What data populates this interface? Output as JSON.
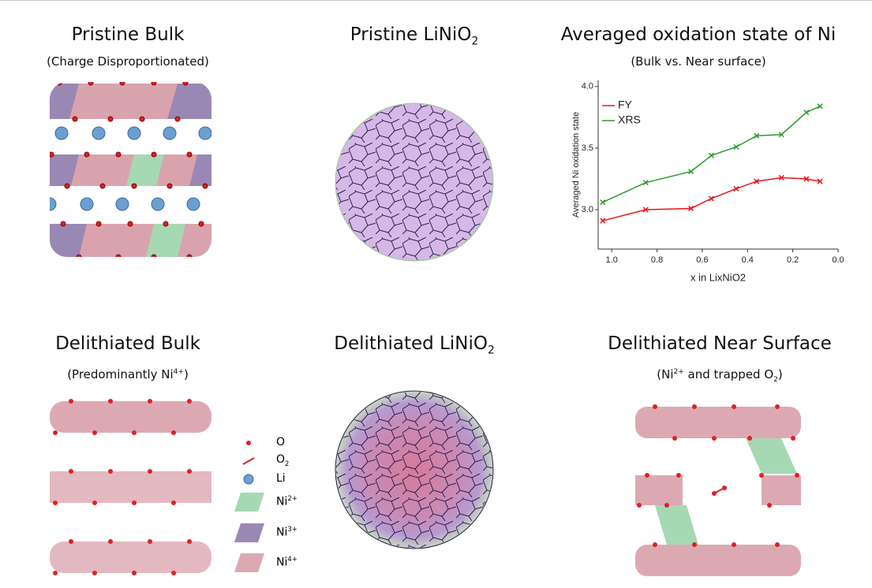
{
  "panels": {
    "pristine_bulk": {
      "title": "Pristine Bulk",
      "subtitle": "(Charge Disproportionated)"
    },
    "pristine_particle": {
      "title": "Pristine LiNiO",
      "title_sub": "2"
    },
    "oxidation": {
      "title": "Averaged oxidation state of Ni",
      "subtitle": "(Bulk vs. Near surface)"
    },
    "delithiated_bulk": {
      "title": "Delithiated Bulk",
      "subtitle_pre": "(Predominantly Ni",
      "subtitle_sup": "4+",
      "subtitle_post": ")"
    },
    "delithiated_particle": {
      "title": "Delithiated LiNiO",
      "title_sub": "2"
    },
    "near_surface": {
      "title": "Delithiated Near Surface",
      "subtitle_pre": "(Ni",
      "subtitle_sup": "2+",
      "subtitle_mid": " and trapped O",
      "subtitle_sub": "2",
      "subtitle_post": ")"
    }
  },
  "legend": {
    "o": "O",
    "o2": {
      "text": "O",
      "sub": "2"
    },
    "li": "Li",
    "ni2": {
      "text": "Ni",
      "sup": "2+"
    },
    "ni3": {
      "text": "Ni",
      "sup": "3+"
    },
    "ni4": {
      "text": "Ni",
      "sup": "4+"
    }
  },
  "chart_data": {
    "type": "line",
    "x_label": "x in LixNiO2",
    "y_label": "Averaged Ni oxidation state",
    "x": [
      1.04,
      0.85,
      0.65,
      0.56,
      0.45,
      0.36,
      0.25,
      0.14,
      0.08
    ],
    "series": [
      {
        "name": "FY",
        "color": "#e8141b",
        "values": [
          2.91,
          3.0,
          3.01,
          3.09,
          3.17,
          3.23,
          3.26,
          3.25,
          3.23
        ]
      },
      {
        "name": "XRS",
        "color": "#2a9d2a",
        "values": [
          3.06,
          3.22,
          3.31,
          3.44,
          3.51,
          3.6,
          3.61,
          3.79,
          3.84
        ]
      }
    ],
    "xlim": [
      1.06,
      0.0
    ],
    "ylim": [
      2.68,
      4.05
    ],
    "xticks": [
      {
        "value": 1.0,
        "label": "1.0"
      },
      {
        "value": 0.8,
        "label": "0.8"
      },
      {
        "value": 0.6,
        "label": "0.6"
      },
      {
        "value": 0.4,
        "label": "0.4"
      },
      {
        "value": 0.2,
        "label": "0.2"
      },
      {
        "value": 0.0,
        "label": "0.0"
      }
    ],
    "yticks": [
      {
        "value": 3.0,
        "label": "3.0"
      },
      {
        "value": 3.5,
        "label": "3.5"
      },
      {
        "value": 4.0,
        "label": "4.0"
      }
    ],
    "legend": "upper left"
  }
}
